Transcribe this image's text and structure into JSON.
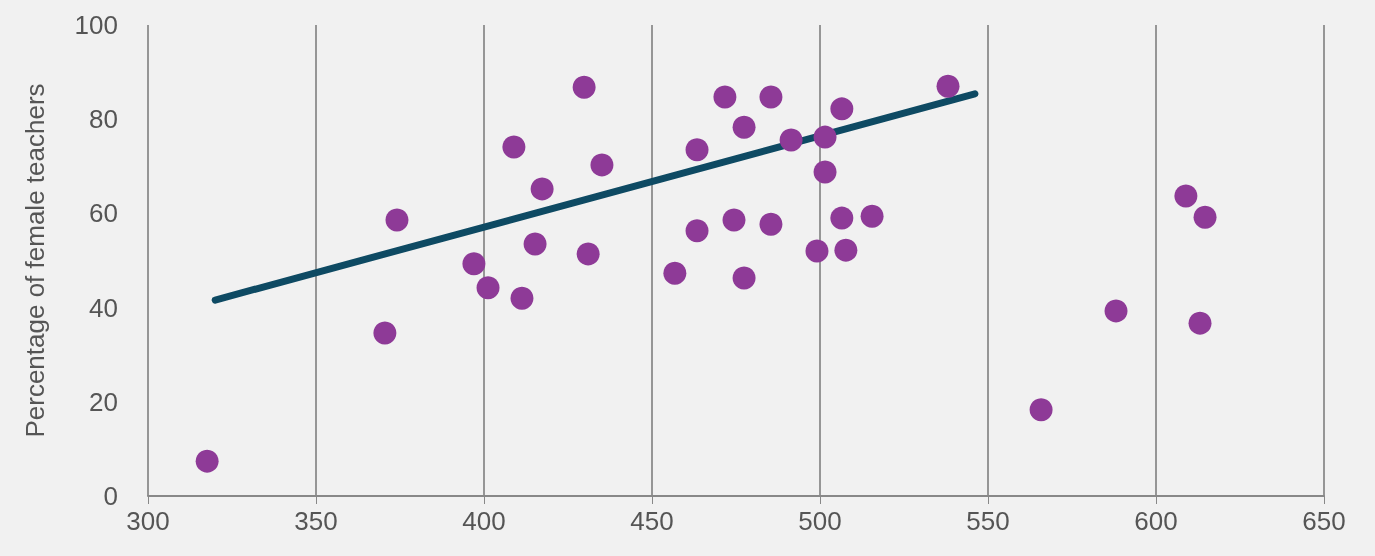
{
  "chart_data": {
    "type": "scatter",
    "ylabel": "Percentage of female teachers",
    "xlim": [
      300,
      650
    ],
    "xticks": [
      300,
      350,
      400,
      450,
      500,
      550,
      600,
      650
    ],
    "ylim": [
      0,
      100
    ],
    "yticks": [
      0,
      20,
      40,
      60,
      80,
      100
    ],
    "grid": "x",
    "marker": "circle",
    "series": [
      {
        "color": "#8e3a97",
        "x": [
          317.6,
          370.5,
          374.1,
          397.0,
          401.2,
          408.9,
          411.3,
          415.2,
          417.3,
          429.8,
          431.0,
          435.1,
          456.8,
          463.4,
          463.4,
          471.7,
          474.4,
          477.4,
          477.4,
          485.4,
          485.4,
          491.4,
          499.1,
          501.5,
          501.5,
          506.5,
          506.5,
          507.7,
          515.5,
          538.1,
          565.8,
          588.1,
          608.9,
          613.1,
          614.6
        ],
        "values": [
          7.4,
          34.6,
          58.6,
          49.3,
          44.2,
          74.1,
          42.0,
          53.5,
          65.2,
          86.8,
          51.4,
          70.3,
          47.3,
          73.5,
          56.3,
          84.7,
          58.6,
          78.3,
          46.3,
          84.7,
          57.7,
          75.6,
          52.0,
          76.2,
          68.8,
          82.2,
          59.0,
          52.2,
          59.4,
          87.0,
          18.3,
          39.3,
          63.7,
          36.7,
          59.2
        ]
      },
      {
        "type": "line",
        "marker": "none",
        "color": "#0e4a63",
        "x": [
          320,
          546.1
        ],
        "values": [
          41.6,
          85.4
        ]
      }
    ]
  }
}
